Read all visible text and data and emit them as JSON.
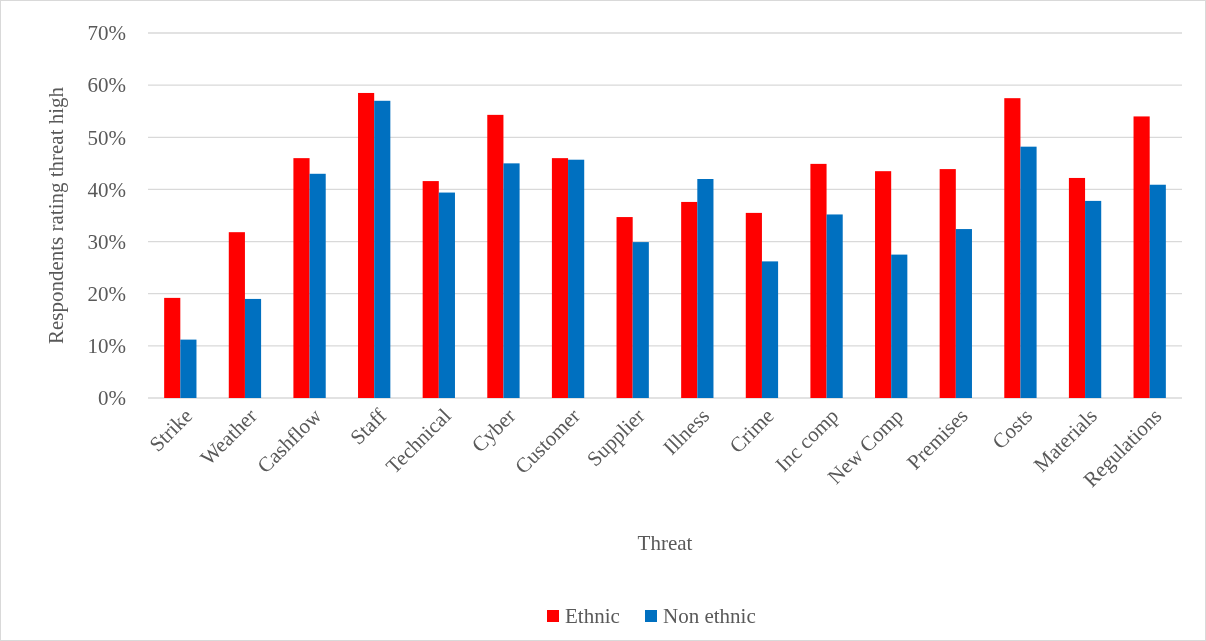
{
  "chart_data": {
    "type": "bar",
    "xlabel": "Threat",
    "ylabel": "Respondents rating threat high",
    "categories": [
      "Strike",
      "Weather",
      "Cashflow",
      "Staff",
      "Technical",
      "Cyber",
      "Customer",
      "Supplier",
      "Illness",
      "Crime",
      "Inc comp",
      "New Comp",
      "Premises",
      "Costs",
      "Materials",
      "Regulations"
    ],
    "series": [
      {
        "name": "Ethnic",
        "color": "#ff0000",
        "values": [
          19.2,
          31.8,
          46,
          58.5,
          41.6,
          54.3,
          46,
          34.7,
          37.6,
          35.5,
          44.9,
          43.5,
          43.9,
          57.5,
          42.2,
          54
        ]
      },
      {
        "name": "Non ethnic",
        "color": "#0070c0",
        "values": [
          11.2,
          19,
          43,
          57,
          39.4,
          45,
          45.7,
          29.9,
          42,
          26.2,
          35.2,
          27.5,
          32.4,
          48.2,
          37.8,
          40.9
        ]
      }
    ],
    "ylim": [
      0,
      70
    ],
    "yticks": [
      {
        "value": 0,
        "label": "0%"
      },
      {
        "value": 10,
        "label": "10%"
      },
      {
        "value": 20,
        "label": "20%"
      },
      {
        "value": 30,
        "label": "30%"
      },
      {
        "value": 40,
        "label": "40%"
      },
      {
        "value": 50,
        "label": "50%"
      },
      {
        "value": 60,
        "label": "60%"
      },
      {
        "value": 70,
        "label": "70%"
      }
    ],
    "grid": "y",
    "legend": "bottom"
  }
}
